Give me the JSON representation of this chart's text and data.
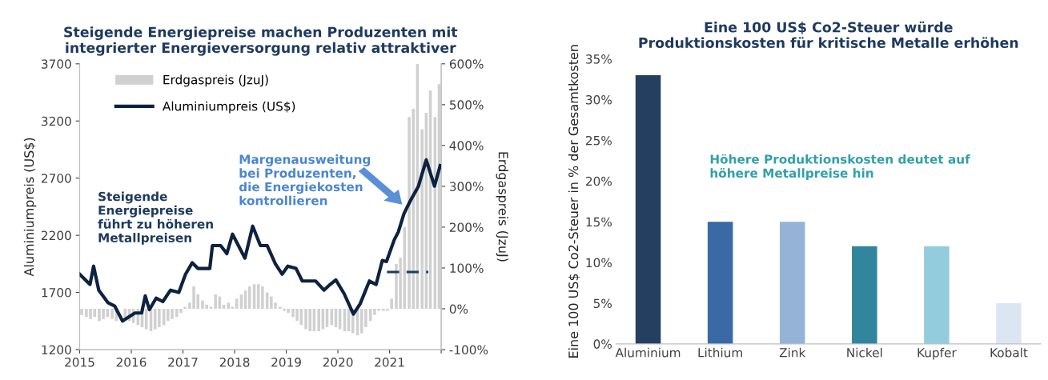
{
  "chart_data": [
    {
      "type": "bar",
      "title": "Steigende Energiepreise machen Produzenten mit\nintegrierter Energieversorgung relativ attraktiver",
      "ylabel": "Aluminiumpreis (US$)",
      "y2label": "Erdgaspreis (JzuJ)",
      "xlim": [
        2015,
        2022
      ],
      "xticks": [
        2015,
        2016,
        2017,
        2018,
        2019,
        2020,
        2021,
        {
          "value": 2022,
          "label": null
        }
      ],
      "ylim": [
        1200,
        3700
      ],
      "yticks": [
        1200,
        1700,
        2200,
        2700,
        3200,
        3700
      ],
      "y2lim": [
        -100,
        600
      ],
      "y2ticks": [
        {
          "value": -100,
          "label": "-100%"
        },
        {
          "value": 0,
          "label": "0%"
        },
        {
          "value": 100,
          "label": "100%"
        },
        {
          "value": 200,
          "label": "200%"
        },
        {
          "value": 300,
          "label": "300%"
        },
        {
          "value": 400,
          "label": "400%"
        },
        {
          "value": 500,
          "label": "500%"
        },
        {
          "value": 600,
          "label": "600%"
        }
      ],
      "legend": "top left",
      "grid": false,
      "annotations": [
        "Steigende\nEnergiepreise\nführt zu höheren\nMetallpreisen",
        "Margenausweitung\nbei Produzenten,\ndie Energiekosten\nkontrollieren"
      ],
      "series": [
        {
          "name": "Erdgaspreis (JzuJ)",
          "type": "bar",
          "axis": "y2",
          "color": "#d0d0d0",
          "x": [
            2015.04,
            2015.13,
            2015.21,
            2015.29,
            2015.38,
            2015.46,
            2015.54,
            2015.63,
            2015.71,
            2015.79,
            2015.88,
            2015.96,
            2016.04,
            2016.13,
            2016.21,
            2016.29,
            2016.38,
            2016.46,
            2016.54,
            2016.63,
            2016.71,
            2016.79,
            2016.88,
            2016.96,
            2017.04,
            2017.13,
            2017.21,
            2017.29,
            2017.38,
            2017.46,
            2017.54,
            2017.63,
            2017.71,
            2017.79,
            2017.88,
            2017.96,
            2018.04,
            2018.13,
            2018.21,
            2018.29,
            2018.38,
            2018.46,
            2018.54,
            2018.63,
            2018.71,
            2018.79,
            2018.88,
            2018.96,
            2019.04,
            2019.13,
            2019.21,
            2019.29,
            2019.38,
            2019.46,
            2019.54,
            2019.63,
            2019.71,
            2019.79,
            2019.88,
            2019.96,
            2020.04,
            2020.13,
            2020.21,
            2020.29,
            2020.38,
            2020.46,
            2020.54,
            2020.63,
            2020.71,
            2020.79,
            2020.88,
            2020.96,
            2021.04,
            2021.13,
            2021.21,
            2021.29,
            2021.38,
            2021.46,
            2021.54,
            2021.63,
            2021.71,
            2021.79,
            2021.88,
            2021.96
          ],
          "values": [
            -15,
            -20,
            -25,
            -20,
            -30,
            -25,
            -20,
            -25,
            -30,
            null,
            -25,
            -30,
            -35,
            -40,
            -45,
            -50,
            -55,
            -50,
            -45,
            -40,
            -30,
            -25,
            -20,
            -10,
            5,
            15,
            55,
            35,
            20,
            10,
            5,
            35,
            30,
            10,
            15,
            5,
            25,
            35,
            45,
            55,
            60,
            60,
            55,
            40,
            30,
            15,
            5,
            -5,
            -10,
            -20,
            -30,
            -40,
            -50,
            -55,
            -55,
            -55,
            -50,
            -45,
            -40,
            -45,
            -50,
            -55,
            -55,
            -60,
            -65,
            -60,
            -45,
            -30,
            -15,
            -5,
            -5,
            -5,
            25,
            110,
            125,
            200,
            470,
            490,
            600,
            440,
            480,
            535,
            470,
            550
          ]
        },
        {
          "name": "Aluminiumpreis (US$)",
          "type": "line",
          "color": "#0d2240",
          "x": [
            2015.0,
            2015.2,
            2015.27,
            2015.37,
            2015.55,
            2015.68,
            2015.83,
            2016.07,
            2016.2,
            2016.27,
            2016.35,
            2016.48,
            2016.61,
            2016.76,
            2016.92,
            2017.05,
            2017.18,
            2017.29,
            2017.52,
            2017.57,
            2017.73,
            2017.85,
            2017.96,
            2018.2,
            2018.35,
            2018.5,
            2018.63,
            2018.79,
            2018.92,
            2019.03,
            2019.19,
            2019.31,
            2019.57,
            2019.73,
            2019.85,
            2019.96,
            2020.12,
            2020.3,
            2020.43,
            2020.61,
            2020.74,
            2020.86,
            2020.94,
            2021.09,
            2021.17,
            2021.28,
            2021.4,
            2021.56,
            2021.71,
            2021.87,
            2021.98
          ],
          "values": [
            1860,
            1770,
            1930,
            1720,
            1610,
            1580,
            1450,
            1520,
            1520,
            1670,
            1550,
            1650,
            1620,
            1720,
            1700,
            1860,
            1960,
            1910,
            1910,
            2110,
            2110,
            2040,
            2210,
            2000,
            2280,
            2110,
            2110,
            1950,
            1860,
            1930,
            1910,
            1800,
            1800,
            1720,
            1770,
            1810,
            1690,
            1510,
            1600,
            1800,
            1770,
            1980,
            1970,
            2160,
            2230,
            2390,
            2500,
            2630,
            2860,
            2630,
            2810
          ]
        },
        {
          "type": "line",
          "axis": "y2",
          "color": "#1f3a5f",
          "line_style": "dashed",
          "x": [
            2020.95,
            2021.75
          ],
          "values": [
            90,
            90
          ]
        }
      ]
    },
    {
      "type": "bar",
      "title": "Eine 100 US$ Co2-Steuer würde\nProduktionskosten für kritische Metalle erhöhen",
      "ylabel": "Eine 100 US$ Co2-Steuer in % der Gesamtkosten",
      "categories": [
        "Aluminium",
        "Lithium",
        "Zink",
        "Nickel",
        "Kupfer",
        "Kobalt"
      ],
      "values": [
        33,
        15,
        15,
        12,
        12,
        5
      ],
      "colors": [
        "#243f60",
        "#3a6aa6",
        "#95b3d7",
        "#31859c",
        "#93cddd",
        "#dce6f2"
      ],
      "ylim": [
        0,
        35
      ],
      "yticks": [
        {
          "value": 0,
          "label": "0%"
        },
        {
          "value": 5,
          "label": "5%"
        },
        {
          "value": 10,
          "label": "10%"
        },
        {
          "value": 15,
          "label": "15%"
        },
        {
          "value": 20,
          "label": "20%"
        },
        {
          "value": 25,
          "label": "25%"
        },
        {
          "value": 30,
          "label": "30%"
        },
        {
          "value": 35,
          "label": "35%"
        }
      ],
      "grid": false,
      "annotations": [
        "Höhere Produktionskosten deutet auf\nhöhere Metallpreise hin"
      ]
    }
  ]
}
